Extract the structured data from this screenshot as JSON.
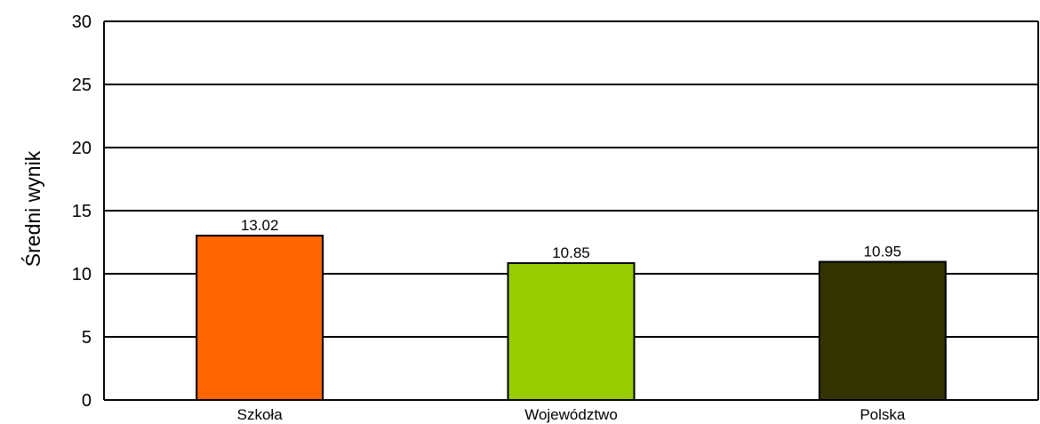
{
  "chart_data": {
    "type": "bar",
    "title": "",
    "xlabel": "",
    "ylabel": "Średni wynik",
    "ylim": [
      0,
      30
    ],
    "yticks": [
      0,
      5,
      10,
      15,
      20,
      25,
      30
    ],
    "grid": true,
    "legend": "none",
    "categories": [
      "Szkoła",
      "Województwo",
      "Polska"
    ],
    "values": [
      13.02,
      10.85,
      10.95
    ],
    "value_labels": [
      "13.02",
      "10.85",
      "10.95"
    ],
    "colors": [
      "#ff6600",
      "#99cc00",
      "#333300"
    ]
  }
}
